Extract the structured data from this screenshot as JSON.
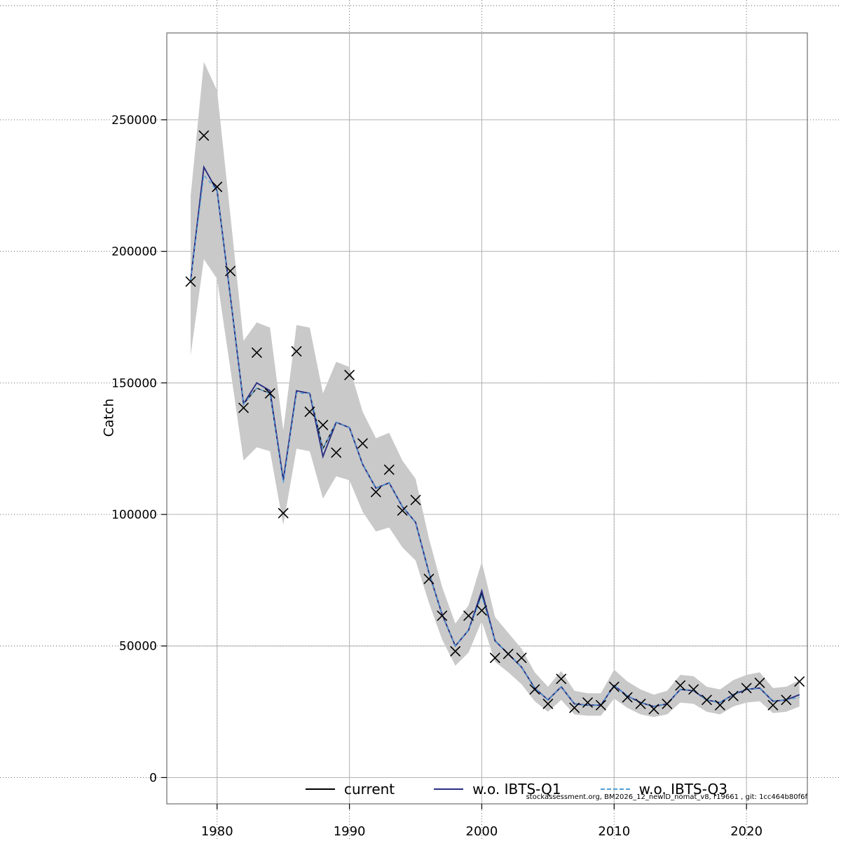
{
  "figure": {
    "ylabel": "Catch",
    "footnote": "stockassessment.org, BM2026_12_newID_nomat_v8, r19661 , git: 1cc464b80f6f",
    "legend": [
      {
        "label": "current",
        "color": "#000000",
        "dash": "solid"
      },
      {
        "label": "w.o. IBTS-Q1",
        "color": "#2b2e83",
        "dash": "solid"
      },
      {
        "label": "w.o. IBTS-Q3",
        "color": "#4f9fd8",
        "dash": "dashed"
      }
    ]
  },
  "chart_data": {
    "type": "line",
    "title": "",
    "xlabel": "",
    "ylabel": "Catch",
    "xlim": [
      1976.2,
      2024.6
    ],
    "ylim": [
      -10000,
      283000
    ],
    "xticks": [
      1980,
      1990,
      2000,
      2010,
      2020
    ],
    "yticks": [
      0,
      50000,
      100000,
      150000,
      200000,
      250000
    ],
    "grid": true,
    "legend_position": "bottom",
    "x": [
      1978,
      1979,
      1980,
      1981,
      1982,
      1983,
      1984,
      1985,
      1986,
      1987,
      1988,
      1989,
      1990,
      1991,
      1992,
      1993,
      1994,
      1995,
      1996,
      1997,
      1998,
      1999,
      2000,
      2001,
      2002,
      2003,
      2004,
      2005,
      2006,
      2007,
      2008,
      2009,
      2010,
      2011,
      2012,
      2013,
      2014,
      2015,
      2016,
      2017,
      2018,
      2019,
      2020,
      2021,
      2022,
      2023,
      2024
    ],
    "series": [
      {
        "name": "current",
        "color": "#000000",
        "style": "solid",
        "values": [
          189000,
          232000,
          223000,
          183000,
          142000,
          148000,
          146000,
          113000,
          147000,
          146000,
          125000,
          135000,
          133000,
          119000,
          110000,
          112000,
          103000,
          97000,
          78000,
          62000,
          50000,
          56000,
          70000,
          52000,
          47000,
          42000,
          34000,
          29500,
          34500,
          28000,
          27500,
          27500,
          35000,
          31000,
          28500,
          27000,
          28000,
          33500,
          33000,
          29500,
          28500,
          31500,
          33500,
          34000,
          29000,
          29500,
          31500
        ]
      },
      {
        "name": "w.o. IBTS-Q1",
        "color": "#2b2e83",
        "style": "solid",
        "values": [
          189000,
          232000,
          223000,
          183000,
          142000,
          150000,
          147000,
          113000,
          147000,
          146000,
          122000,
          135000,
          133000,
          119000,
          110000,
          112000,
          103000,
          97000,
          78000,
          62000,
          50000,
          56000,
          71000,
          52000,
          47000,
          42000,
          34000,
          29500,
          34500,
          28000,
          27500,
          27500,
          35000,
          31000,
          28500,
          27000,
          28000,
          33500,
          33000,
          29500,
          28500,
          31500,
          33500,
          34000,
          29000,
          29500,
          31500
        ]
      },
      {
        "name": "w.o. IBTS-Q3",
        "color": "#4f9fd8",
        "style": "dashed",
        "values": [
          189000,
          229000,
          223000,
          183000,
          142000,
          148000,
          146000,
          112000,
          146000,
          146000,
          125000,
          135000,
          133000,
          119000,
          110000,
          112000,
          103000,
          97000,
          78000,
          62000,
          50000,
          56000,
          69000,
          52000,
          47000,
          42000,
          34000,
          29500,
          34500,
          28000,
          27500,
          27500,
          35000,
          31000,
          28500,
          27000,
          28000,
          33500,
          33000,
          29500,
          28500,
          31500,
          33500,
          34000,
          29000,
          29500,
          30500
        ]
      },
      {
        "name": "observed",
        "color": "#000000",
        "marker": "x",
        "values": [
          188500,
          244000,
          224500,
          192500,
          140500,
          161500,
          146000,
          100500,
          162000,
          139000,
          134000,
          123500,
          153000,
          127000,
          108500,
          117000,
          101500,
          105500,
          75500,
          61500,
          48000,
          61500,
          63500,
          45500,
          47000,
          45500,
          33500,
          28000,
          37500,
          26500,
          28500,
          27500,
          34500,
          30500,
          28000,
          26000,
          28000,
          35000,
          33500,
          29500,
          27500,
          31000,
          34000,
          36000,
          27500,
          29500,
          36500
        ]
      }
    ],
    "band": {
      "name": "confidence",
      "color": "#c9c9c9",
      "lower": [
        160500,
        197000,
        189500,
        155500,
        120500,
        125500,
        124000,
        96000,
        125000,
        124000,
        106000,
        114500,
        113000,
        101000,
        93500,
        95000,
        87500,
        82500,
        66500,
        52500,
        42500,
        47500,
        59500,
        44000,
        40000,
        35500,
        29000,
        25000,
        29500,
        24000,
        23500,
        23500,
        30000,
        26500,
        24000,
        23000,
        24000,
        28500,
        28000,
        25000,
        24000,
        27000,
        28500,
        29000,
        24500,
        25000,
        27000
      ],
      "upper": [
        221000,
        272000,
        261000,
        214000,
        166000,
        173000,
        171000,
        132000,
        172000,
        171000,
        146000,
        158000,
        156000,
        139000,
        129000,
        131000,
        120500,
        113500,
        91000,
        72500,
        58500,
        65500,
        82000,
        61000,
        55000,
        49000,
        40000,
        34500,
        40500,
        33000,
        32000,
        32000,
        41000,
        36500,
        33500,
        31500,
        33000,
        39000,
        38500,
        34500,
        33500,
        37000,
        39000,
        40000,
        34000,
        34500,
        37000
      ]
    }
  }
}
